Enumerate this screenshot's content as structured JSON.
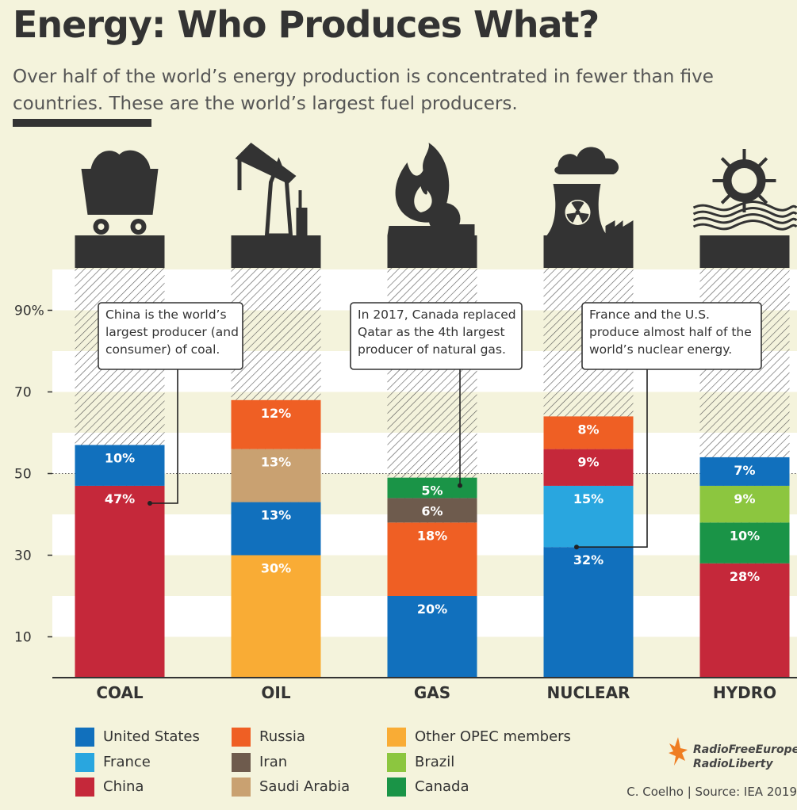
{
  "title": "Energy: Who Produces What?",
  "subtitle": "Over half of the world’s energy production is concentrated in fewer than five countries. These are the world’s largest fuel producers.",
  "credit": "C. Coelho | Source: IEA 2019",
  "brand": {
    "line1": "RadioFreeEurope",
    "line2": "RadioLiberty"
  },
  "colors": {
    "United States": "#1170bd",
    "France": "#29a6df",
    "China": "#c5283a",
    "Russia": "#ef5f24",
    "Iran": "#6e5b4d",
    "Saudi Arabia": "#c9a171",
    "Other OPEC members": "#f9ac35",
    "Brazil": "#8cc63f",
    "Canada": "#1a9447",
    "background": "#f4f3dc",
    "band": "#ffffff",
    "ink": "#333333"
  },
  "legend": {
    "columns": [
      [
        "United States",
        "France",
        "China"
      ],
      [
        "Russia",
        "Iran",
        "Saudi Arabia"
      ],
      [
        "Other OPEC members",
        "Brazil",
        "Canada"
      ]
    ]
  },
  "chart_data": {
    "type": "bar",
    "stacked": true,
    "categories": [
      "COAL",
      "OIL",
      "GAS",
      "NUCLEAR",
      "HYDRO"
    ],
    "ylim": [
      0,
      100
    ],
    "yticks": [
      10,
      30,
      50,
      70,
      90
    ],
    "ytick_labels": [
      "10",
      "30",
      "50",
      "70",
      "90%"
    ],
    "reference_line": 50,
    "icons": [
      "coal-cart-icon",
      "oil-pump-icon",
      "gas-flame-icon",
      "nuclear-plant-icon",
      "hydro-turbine-icon"
    ],
    "stacks": [
      {
        "category": "COAL",
        "segments": [
          {
            "country": "China",
            "value": 47,
            "label": "47%"
          },
          {
            "country": "United States",
            "value": 10,
            "label": "10%"
          }
        ]
      },
      {
        "category": "OIL",
        "segments": [
          {
            "country": "Other OPEC members",
            "value": 30,
            "label": "30%"
          },
          {
            "country": "United States",
            "value": 13,
            "label": "13%"
          },
          {
            "country": "Saudi Arabia",
            "value": 13,
            "label": "13%"
          },
          {
            "country": "Russia",
            "value": 12,
            "label": "12%"
          }
        ]
      },
      {
        "category": "GAS",
        "segments": [
          {
            "country": "United States",
            "value": 20,
            "label": "20%"
          },
          {
            "country": "Russia",
            "value": 18,
            "label": "18%"
          },
          {
            "country": "Iran",
            "value": 6,
            "label": "6%"
          },
          {
            "country": "Canada",
            "value": 5,
            "label": "5%"
          }
        ]
      },
      {
        "category": "NUCLEAR",
        "segments": [
          {
            "country": "United States",
            "value": 32,
            "label": "32%"
          },
          {
            "country": "France",
            "value": 15,
            "label": "15%"
          },
          {
            "country": "China",
            "value": 9,
            "label": "9%"
          },
          {
            "country": "Russia",
            "value": 8,
            "label": "8%"
          }
        ]
      },
      {
        "category": "HYDRO",
        "segments": [
          {
            "country": "China",
            "value": 28,
            "label": "28%"
          },
          {
            "country": "Canada",
            "value": 10,
            "label": "10%"
          },
          {
            "country": "Brazil",
            "value": 9,
            "label": "9%"
          },
          {
            "country": "United States",
            "value": 7,
            "label": "7%"
          }
        ]
      }
    ],
    "annotations": [
      {
        "category": "COAL",
        "country": "China",
        "lines": [
          "China is the world’s",
          "largest producer (and",
          "consumer) of coal."
        ]
      },
      {
        "category": "GAS",
        "country": "Canada",
        "lines": [
          "In 2017, Canada replaced",
          "Qatar as the 4th largest",
          "producer of natural gas."
        ]
      },
      {
        "category": "NUCLEAR",
        "country": "United States",
        "lines": [
          "France and the U.S.",
          "produce almost half of the",
          "world’s nuclear energy."
        ]
      }
    ]
  }
}
